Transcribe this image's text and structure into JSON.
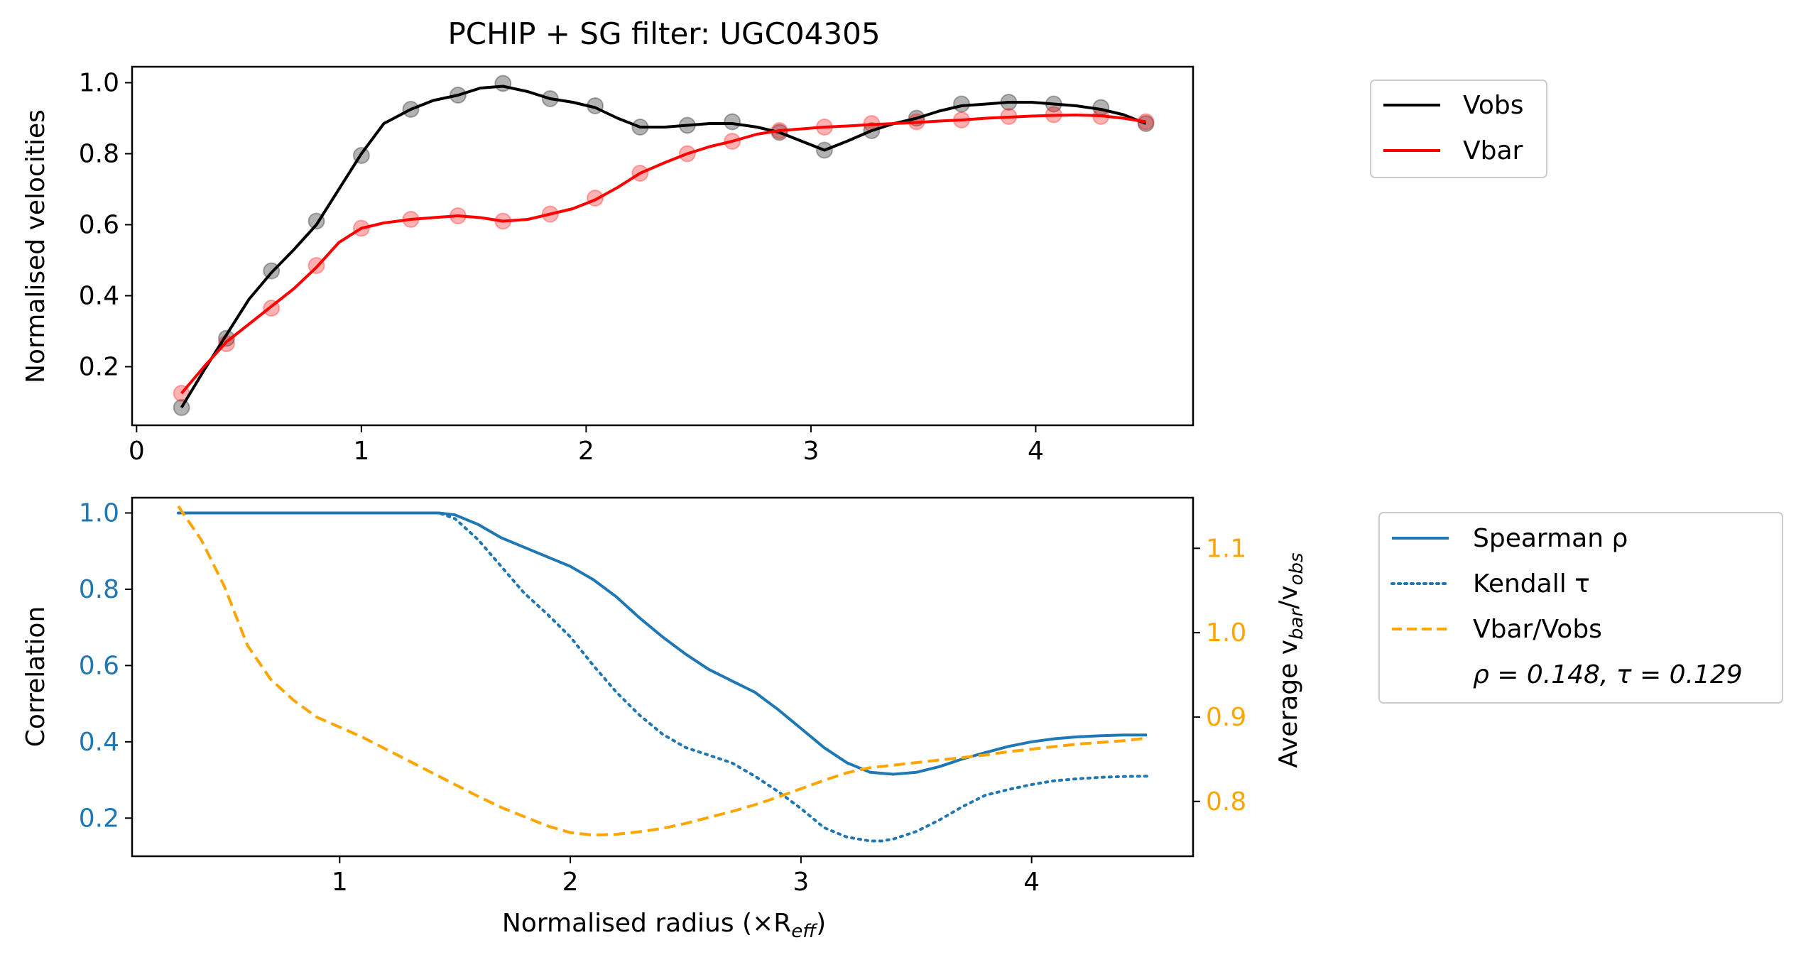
{
  "colors": {
    "vobs": "#000000",
    "vbar": "#ff0000",
    "spearman": "#1f77b4",
    "kendall": "#1f77b4",
    "ratio": "#ffa500",
    "axis": "#000000"
  },
  "chart_data": [
    {
      "type": "line",
      "title": "PCHIP + SG filter: UGC04305",
      "xlabel": "",
      "ylabel": "Normalised velocities",
      "xlim": [
        -0.02,
        4.7
      ],
      "ylim": [
        0.035,
        1.045
      ],
      "xticks": [
        0,
        1,
        2,
        3,
        4
      ],
      "yticks": [
        0.2,
        0.4,
        0.6,
        0.8,
        1.0
      ],
      "xtick_labels": [
        "0",
        "1",
        "2",
        "3",
        "4"
      ],
      "ytick_labels": [
        "0.2",
        "0.4",
        "0.6",
        "0.8",
        "1.0"
      ],
      "legend_placement": "outside-right",
      "legend": [
        "Vobs",
        "Vbar"
      ],
      "series": [
        {
          "name": "Vobs",
          "style": "solid",
          "points": {
            "x": [
              0.2,
              0.4,
              0.6,
              0.8,
              1.0,
              1.22,
              1.43,
              1.63,
              1.84,
              2.04,
              2.24,
              2.45,
              2.65,
              2.86,
              3.06,
              3.27,
              3.47,
              3.67,
              3.88,
              4.08,
              4.29,
              4.49
            ],
            "y": [
              0.085,
              0.28,
              0.47,
              0.61,
              0.795,
              0.925,
              0.965,
              0.998,
              0.955,
              0.935,
              0.875,
              0.88,
              0.89,
              0.86,
              0.81,
              0.865,
              0.9,
              0.94,
              0.945,
              0.94,
              0.93,
              0.885
            ]
          },
          "curve": {
            "x": [
              0.2,
              0.3,
              0.4,
              0.5,
              0.6,
              0.7,
              0.8,
              0.9,
              1.0,
              1.1,
              1.22,
              1.32,
              1.43,
              1.53,
              1.63,
              1.74,
              1.84,
              1.94,
              2.04,
              2.14,
              2.24,
              2.35,
              2.45,
              2.55,
              2.65,
              2.76,
              2.86,
              2.96,
              3.06,
              3.16,
              3.27,
              3.37,
              3.47,
              3.57,
              3.67,
              3.78,
              3.88,
              3.98,
              4.08,
              4.18,
              4.29,
              4.39,
              4.49
            ],
            "y": [
              0.085,
              0.19,
              0.29,
              0.39,
              0.465,
              0.53,
              0.6,
              0.7,
              0.8,
              0.885,
              0.925,
              0.95,
              0.965,
              0.985,
              0.99,
              0.975,
              0.955,
              0.945,
              0.93,
              0.9,
              0.875,
              0.875,
              0.88,
              0.885,
              0.885,
              0.875,
              0.86,
              0.835,
              0.81,
              0.835,
              0.865,
              0.885,
              0.9,
              0.92,
              0.935,
              0.94,
              0.945,
              0.945,
              0.94,
              0.935,
              0.925,
              0.91,
              0.885
            ]
          }
        },
        {
          "name": "Vbar",
          "style": "solid",
          "points": {
            "x": [
              0.2,
              0.4,
              0.6,
              0.8,
              1.0,
              1.22,
              1.43,
              1.63,
              1.84,
              2.04,
              2.24,
              2.45,
              2.65,
              2.86,
              3.06,
              3.27,
              3.47,
              3.67,
              3.88,
              4.08,
              4.29,
              4.49
            ],
            "y": [
              0.125,
              0.265,
              0.365,
              0.485,
              0.59,
              0.615,
              0.625,
              0.61,
              0.63,
              0.675,
              0.745,
              0.8,
              0.835,
              0.865,
              0.875,
              0.885,
              0.89,
              0.895,
              0.905,
              0.91,
              0.905,
              0.89
            ]
          },
          "curve": {
            "x": [
              0.2,
              0.3,
              0.4,
              0.5,
              0.6,
              0.7,
              0.8,
              0.9,
              1.0,
              1.1,
              1.22,
              1.32,
              1.43,
              1.53,
              1.63,
              1.74,
              1.84,
              1.94,
              2.04,
              2.14,
              2.24,
              2.35,
              2.45,
              2.55,
              2.65,
              2.76,
              2.86,
              2.96,
              3.06,
              3.16,
              3.27,
              3.37,
              3.47,
              3.57,
              3.67,
              3.78,
              3.88,
              3.98,
              4.08,
              4.18,
              4.29,
              4.39,
              4.49
            ],
            "y": [
              0.125,
              0.2,
              0.27,
              0.32,
              0.37,
              0.42,
              0.48,
              0.55,
              0.59,
              0.605,
              0.615,
              0.62,
              0.625,
              0.62,
              0.61,
              0.615,
              0.63,
              0.645,
              0.67,
              0.705,
              0.745,
              0.775,
              0.8,
              0.82,
              0.835,
              0.855,
              0.865,
              0.87,
              0.875,
              0.878,
              0.882,
              0.885,
              0.888,
              0.892,
              0.895,
              0.9,
              0.903,
              0.906,
              0.908,
              0.909,
              0.907,
              0.9,
              0.89
            ]
          }
        }
      ]
    },
    {
      "type": "line",
      "title": "",
      "xlabel": "Normalised radius (×R",
      "xlabel_sub": "eff",
      "xlabel_end": ")",
      "ylabel": "Correlation",
      "ylabel_right_prefix": "Average v",
      "ylabel_right_sub1": "bar",
      "ylabel_right_mid": "/v",
      "ylabel_right_sub2": "obs",
      "xlim": [
        0.1,
        4.7
      ],
      "ylim": [
        0.1,
        1.04
      ],
      "ylim_right": [
        0.735,
        1.16
      ],
      "xticks": [
        1,
        2,
        3,
        4
      ],
      "yticks": [
        0.2,
        0.4,
        0.6,
        0.8,
        1.0
      ],
      "yticks_right": [
        0.8,
        0.9,
        1.0,
        1.1
      ],
      "xtick_labels": [
        "1",
        "2",
        "3",
        "4"
      ],
      "ytick_labels": [
        "0.2",
        "0.4",
        "0.6",
        "0.8",
        "1.0"
      ],
      "ytick_labels_right": [
        "0.8",
        "0.9",
        "1.0",
        "1.1"
      ],
      "legend_placement": "outside-right",
      "legend": [
        "Spearman ρ",
        "Kendall τ",
        "Vbar/Vobs"
      ],
      "annotation": "ρ = 0.148, τ = 0.129",
      "series": [
        {
          "name": "Spearman ρ",
          "axis": "left",
          "style": "solid",
          "x": [
            0.3,
            0.6,
            1.0,
            1.3,
            1.43,
            1.5,
            1.6,
            1.7,
            1.8,
            1.9,
            2.0,
            2.1,
            2.2,
            2.3,
            2.4,
            2.5,
            2.6,
            2.7,
            2.8,
            2.9,
            3.0,
            3.1,
            3.2,
            3.3,
            3.4,
            3.5,
            3.6,
            3.7,
            3.8,
            3.9,
            4.0,
            4.1,
            4.2,
            4.3,
            4.4,
            4.5
          ],
          "y": [
            1.0,
            1.0,
            1.0,
            1.0,
            1.0,
            0.995,
            0.97,
            0.935,
            0.91,
            0.885,
            0.86,
            0.825,
            0.78,
            0.725,
            0.675,
            0.63,
            0.59,
            0.56,
            0.53,
            0.485,
            0.435,
            0.385,
            0.345,
            0.32,
            0.315,
            0.32,
            0.335,
            0.355,
            0.372,
            0.388,
            0.4,
            0.408,
            0.413,
            0.416,
            0.418,
            0.418
          ]
        },
        {
          "name": "Kendall τ",
          "axis": "left",
          "style": "dotted",
          "x": [
            0.3,
            0.6,
            1.0,
            1.3,
            1.43,
            1.5,
            1.6,
            1.7,
            1.8,
            1.9,
            2.0,
            2.1,
            2.2,
            2.3,
            2.4,
            2.5,
            2.6,
            2.7,
            2.8,
            2.9,
            3.0,
            3.1,
            3.2,
            3.3,
            3.35,
            3.4,
            3.5,
            3.6,
            3.7,
            3.8,
            3.9,
            4.0,
            4.1,
            4.2,
            4.3,
            4.4,
            4.5
          ],
          "y": [
            1.0,
            1.0,
            1.0,
            1.0,
            1.0,
            0.985,
            0.93,
            0.86,
            0.79,
            0.735,
            0.675,
            0.6,
            0.53,
            0.47,
            0.42,
            0.385,
            0.365,
            0.345,
            0.31,
            0.27,
            0.225,
            0.175,
            0.15,
            0.14,
            0.14,
            0.145,
            0.165,
            0.195,
            0.23,
            0.26,
            0.275,
            0.288,
            0.298,
            0.303,
            0.307,
            0.309,
            0.31
          ]
        },
        {
          "name": "Vbar/Vobs",
          "axis": "right",
          "style": "dashed",
          "x": [
            0.3,
            0.4,
            0.5,
            0.6,
            0.7,
            0.8,
            0.9,
            1.0,
            1.1,
            1.2,
            1.3,
            1.4,
            1.5,
            1.6,
            1.7,
            1.8,
            1.9,
            2.0,
            2.1,
            2.2,
            2.3,
            2.4,
            2.5,
            2.6,
            2.7,
            2.8,
            2.9,
            3.0,
            3.1,
            3.2,
            3.3,
            3.4,
            3.5,
            3.6,
            3.7,
            3.8,
            3.9,
            4.0,
            4.1,
            4.2,
            4.3,
            4.4,
            4.5
          ],
          "y": [
            1.15,
            1.11,
            1.055,
            0.985,
            0.945,
            0.92,
            0.9,
            0.888,
            0.876,
            0.862,
            0.848,
            0.834,
            0.82,
            0.806,
            0.793,
            0.782,
            0.771,
            0.763,
            0.76,
            0.761,
            0.764,
            0.768,
            0.774,
            0.781,
            0.788,
            0.796,
            0.805,
            0.815,
            0.825,
            0.834,
            0.84,
            0.843,
            0.846,
            0.849,
            0.852,
            0.855,
            0.859,
            0.862,
            0.865,
            0.868,
            0.87,
            0.872,
            0.875
          ]
        }
      ]
    }
  ]
}
